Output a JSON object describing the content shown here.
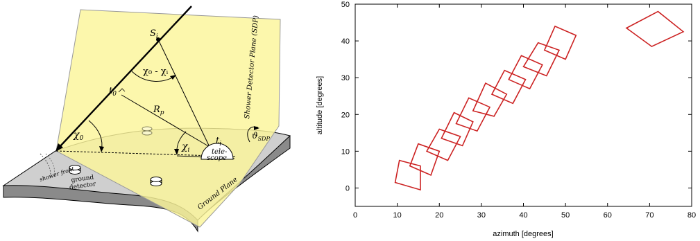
{
  "diagram": {
    "sdp_label": "Shower Detector Plane (SDP)",
    "ground_plane_label": "Ground Plane",
    "si_label": "S",
    "si_sub": "i",
    "chi_diff_label": "χ₀ - χᵢ",
    "t0_label": "t",
    "t0_sub": "0",
    "rp_label": "R",
    "rp_sub": "p",
    "chi0_label": "χ",
    "chi0_sub": "0",
    "chii_label": "χ",
    "chii_sub": "i",
    "ti_label": "t",
    "ti_sub": "i",
    "telescope_line1": "tele-",
    "telescope_line2": "scope",
    "theta_label": "ϑ",
    "theta_sub": "SDP",
    "shower_front_label": "shower front",
    "ground_detector_line1": "ground",
    "ground_detector_line2": "detector"
  },
  "chart_data": {
    "type": "scatter",
    "xlabel": "azimuth [degrees]",
    "ylabel": "altitude [degrees]",
    "xlim": [
      0,
      80
    ],
    "ylim": [
      -5,
      50
    ],
    "xticks": [
      0,
      10,
      20,
      30,
      40,
      50,
      60,
      70,
      80
    ],
    "yticks": [
      0,
      10,
      20,
      30,
      40,
      50
    ],
    "color": "#cc2222",
    "pixels": [
      {
        "center": [
          12.5,
          4.5
        ],
        "vertices": [
          [
            9.5,
            1.5
          ],
          [
            15.5,
            -0.5
          ],
          [
            15.5,
            6.0
          ],
          [
            10.5,
            7.5
          ]
        ]
      },
      {
        "center": [
          16.5,
          8.0
        ],
        "vertices": [
          [
            13.0,
            6.0
          ],
          [
            18.0,
            3.5
          ],
          [
            20.0,
            10.0
          ],
          [
            15.0,
            12.0
          ]
        ]
      },
      {
        "center": [
          19.8,
          11.8
        ],
        "vertices": [
          [
            17.0,
            10.0
          ],
          [
            22.0,
            7.5
          ],
          [
            25.0,
            14.0
          ],
          [
            20.0,
            16.0
          ]
        ]
      },
      {
        "center": [
          23.5,
          15.5
        ],
        "vertices": [
          [
            20.5,
            13.5
          ],
          [
            25.5,
            11.5
          ],
          [
            28.0,
            18.0
          ],
          [
            23.5,
            20.5
          ]
        ]
      },
      {
        "center": [
          27.5,
          19.5
        ],
        "vertices": [
          [
            24.0,
            17.5
          ],
          [
            29.0,
            15.5
          ],
          [
            32.0,
            22.0
          ],
          [
            27.0,
            24.5
          ]
        ]
      },
      {
        "center": [
          31.5,
          23.5
        ],
        "vertices": [
          [
            28.0,
            21.0
          ],
          [
            33.0,
            19.5
          ],
          [
            36.0,
            25.5
          ],
          [
            31.0,
            28.5
          ]
        ]
      },
      {
        "center": [
          35.5,
          27.5
        ],
        "vertices": [
          [
            32.5,
            25.5
          ],
          [
            37.5,
            23.0
          ],
          [
            40.5,
            29.5
          ],
          [
            35.5,
            32.0
          ]
        ]
      },
      {
        "center": [
          40.0,
          31.5
        ],
        "vertices": [
          [
            36.5,
            29.5
          ],
          [
            41.5,
            27.0
          ],
          [
            44.5,
            33.5
          ],
          [
            39.5,
            36.0
          ]
        ]
      },
      {
        "center": [
          44.0,
          35.5
        ],
        "vertices": [
          [
            40.0,
            33.0
          ],
          [
            45.5,
            30.5
          ],
          [
            48.5,
            37.5
          ],
          [
            43.5,
            39.5
          ]
        ]
      },
      {
        "center": [
          48.5,
          40.0
        ],
        "vertices": [
          [
            45.0,
            37.5
          ],
          [
            50.0,
            35.0
          ],
          [
            52.5,
            41.5
          ],
          [
            47.5,
            44.0
          ]
        ]
      },
      {
        "center": [
          71.5,
          45.0
        ],
        "vertices": [
          [
            64.5,
            43.5
          ],
          [
            72.0,
            48.0
          ],
          [
            78.0,
            42.5
          ],
          [
            70.5,
            38.5
          ]
        ]
      }
    ]
  }
}
